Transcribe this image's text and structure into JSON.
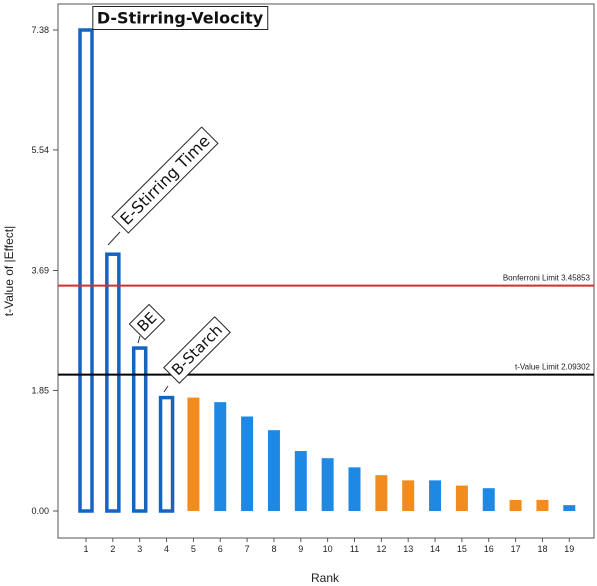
{
  "chart_data": {
    "type": "bar",
    "xlabel": "Rank",
    "ylabel": "t-Value of |Effect|",
    "ylim": [
      0,
      7.5
    ],
    "y_ticks": [
      "0.00",
      "1.85",
      "3.69",
      "5.54",
      "7.38"
    ],
    "y_tick_values": [
      0.0,
      1.85,
      3.69,
      5.54,
      7.38
    ],
    "categories": [
      "1",
      "2",
      "3",
      "4",
      "5",
      "6",
      "7",
      "8",
      "9",
      "10",
      "11",
      "12",
      "13",
      "14",
      "15",
      "16",
      "17",
      "18",
      "19"
    ],
    "values": [
      7.38,
      3.94,
      2.5,
      1.74,
      1.74,
      1.67,
      1.45,
      1.24,
      0.92,
      0.81,
      0.67,
      0.55,
      0.47,
      0.47,
      0.39,
      0.35,
      0.17,
      0.17,
      0.09
    ],
    "bar_styles": [
      "selected",
      "selected",
      "selected",
      "selected",
      "negative",
      "positive",
      "positive",
      "positive",
      "positive",
      "positive",
      "positive",
      "negative",
      "negative",
      "positive",
      "negative",
      "positive",
      "negative",
      "negative",
      "positive"
    ],
    "colors": {
      "positive": "#1e88e5",
      "negative": "#f28c1e",
      "selected_outline": "#1565c0",
      "bonferroni_line": "#d32f2f",
      "t_value_line": "#000000"
    },
    "limits": [
      {
        "label": "Bonferroni Limit 3.45853",
        "value": 3.45853,
        "color": "#d32f2f"
      },
      {
        "label": "t-Value Limit 2.09302",
        "value": 2.09302,
        "color": "#000000"
      }
    ],
    "annotations": [
      {
        "text": "D-Stirring-Velocity",
        "rank": 1
      },
      {
        "text": "E-Stirring Time",
        "rank": 2
      },
      {
        "text": "BE",
        "rank": 3
      },
      {
        "text": "B-Starch",
        "rank": 4
      }
    ]
  }
}
